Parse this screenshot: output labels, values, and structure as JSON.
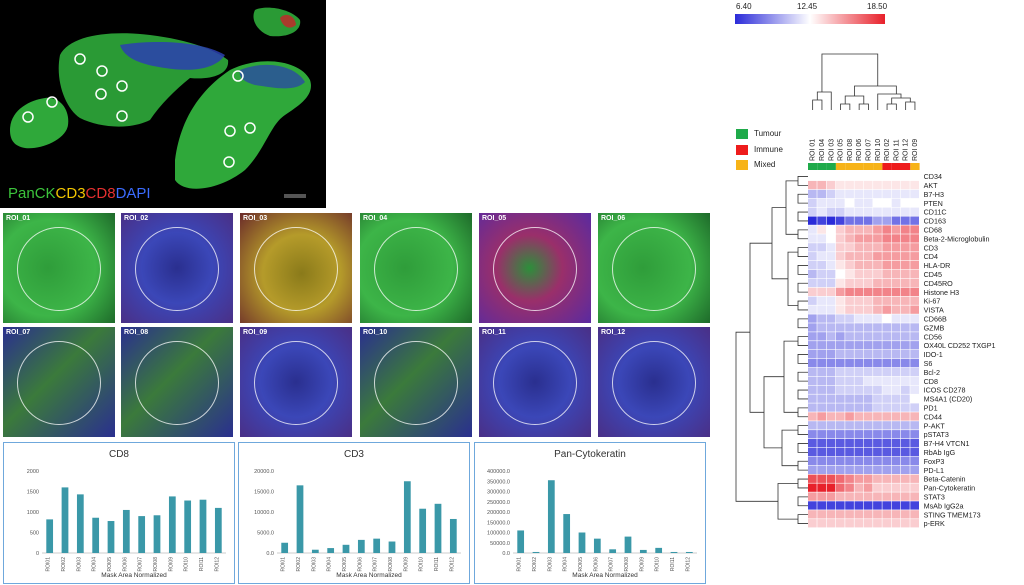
{
  "overview": {
    "legend": [
      {
        "text": "PanCK",
        "color": "#3cc43c"
      },
      {
        "text": "CD3",
        "color": "#f2c500"
      },
      {
        "text": "CD8",
        "color": "#e53030"
      },
      {
        "text": "DAPI",
        "color": "#3b6cff"
      }
    ],
    "roi_markers": [
      "ROI_01",
      "ROI_02",
      "ROI_03",
      "ROI_04",
      "ROI_05",
      "ROI_06",
      "ROI_07",
      "ROI_08",
      "ROI_09",
      "ROI_10",
      "ROI_11",
      "ROI_12"
    ]
  },
  "thumbnails": [
    {
      "label": "ROI_01",
      "palette": "green"
    },
    {
      "label": "ROI_02",
      "palette": "blue"
    },
    {
      "label": "ROI_03",
      "palette": "yellow"
    },
    {
      "label": "ROI_04",
      "palette": "green"
    },
    {
      "label": "ROI_05",
      "palette": "red"
    },
    {
      "label": "ROI_06",
      "palette": "green"
    },
    {
      "label": "ROI_07",
      "palette": "mix"
    },
    {
      "label": "ROI_08",
      "palette": "mix"
    },
    {
      "label": "ROI_09",
      "palette": "blue"
    },
    {
      "label": "ROI_10",
      "palette": "mix"
    },
    {
      "label": "ROI_11",
      "palette": "blue"
    },
    {
      "label": "ROI_12",
      "palette": "blue"
    }
  ],
  "chart_data": [
    {
      "type": "bar",
      "title": "CD8",
      "xlabel": "Mask Area Normalized",
      "categories": [
        "ROI01",
        "ROI02",
        "ROI03",
        "ROI04",
        "ROI05",
        "ROI06",
        "ROI07",
        "ROI08",
        "ROI09",
        "ROI10",
        "ROI11",
        "ROI12"
      ],
      "values": [
        820,
        1600,
        1430,
        860,
        780,
        1050,
        900,
        920,
        1380,
        1280,
        1300,
        1100
      ],
      "ylim": [
        0,
        2000
      ],
      "yticks": [
        "2000",
        "1500",
        "1000",
        "500",
        "0"
      ],
      "bar_color": "#3a98a8"
    },
    {
      "type": "bar",
      "title": "CD3",
      "xlabel": "Mask Area Normalized",
      "categories": [
        "ROI01",
        "ROI02",
        "ROI03",
        "ROI04",
        "ROI05",
        "ROI06",
        "ROI07",
        "ROI08",
        "ROI09",
        "ROI10",
        "ROI11",
        "ROI12"
      ],
      "values": [
        2500,
        16500,
        800,
        1200,
        2000,
        3200,
        3500,
        2800,
        17500,
        10800,
        12000,
        8300
      ],
      "ylim": [
        0,
        20000
      ],
      "yticks": [
        "20000.0",
        "15000.0",
        "10000.0",
        "5000.0",
        "0.0"
      ],
      "bar_color": "#3a98a8"
    },
    {
      "type": "bar",
      "title": "Pan-Cytokeratin",
      "xlabel": "Mask Area Normalized",
      "categories": [
        "ROI01",
        "ROI02",
        "ROI03",
        "ROI04",
        "ROI05",
        "ROI06",
        "ROI07",
        "ROI08",
        "ROI09",
        "ROI10",
        "ROI11",
        "ROI12"
      ],
      "values": [
        110000,
        5000,
        355000,
        190000,
        100000,
        70000,
        18000,
        80000,
        15000,
        25000,
        5000,
        5000
      ],
      "ylim": [
        0,
        400000
      ],
      "yticks": [
        "400000.0",
        "350000.0",
        "300000.0",
        "250000.0",
        "200000.0",
        "150000.0",
        "100000.0",
        "50000.0",
        "0.0"
      ],
      "bar_color": "#3a98a8"
    },
    {
      "type": "heatmap",
      "colorbar": {
        "min": "6.40",
        "mid": "12.45",
        "max": "18.50",
        "low_color": "#2b2bd9",
        "mid_color": "#ffffff",
        "high_color": "#e8202a"
      },
      "columns": [
        "ROI 01",
        "ROI 04",
        "ROI 03",
        "ROI 05",
        "ROI 08",
        "ROI 06",
        "ROI 07",
        "ROI 10",
        "ROI 02",
        "ROI 11",
        "ROI 12",
        "ROI 09"
      ],
      "column_groups": [
        "Tumour",
        "Tumour",
        "Tumour",
        "Mixed",
        "Mixed",
        "Mixed",
        "Mixed",
        "Mixed",
        "Immune",
        "Immune",
        "Immune",
        "Mixed"
      ],
      "legend": [
        {
          "name": "Tumour",
          "color": "#1faa4a"
        },
        {
          "name": "Immune",
          "color": "#ee1c1c"
        },
        {
          "name": "Mixed",
          "color": "#f7b318"
        }
      ],
      "rows": [
        "CD34",
        "AKT",
        "B7-H3",
        "PTEN",
        "CD11C",
        "CD163",
        "CD68",
        "Beta-2-Microglobulin",
        "CD3",
        "CD4",
        "HLA-DR",
        "CD45",
        "CD45RO",
        "Histone H3",
        "Ki-67",
        "VISTA",
        "CD66B",
        "GZMB",
        "CD56",
        "OX40L CD252 TXGP1",
        "IDO-1",
        "S6",
        "Bcl-2",
        "CD8",
        "ICOS CD278",
        "MS4A1 (CD20)",
        "PD1",
        "CD44",
        "P-AKT",
        "pSTAT3",
        "B7-H4 VTCN1",
        "RbAb IgG",
        "FoxP3",
        "PD-L1",
        "Beta-Catenin",
        "Pan-Cytokeratin",
        "STAT3",
        "MsAb IgG2a",
        "STING TMEM173",
        "p-ERK"
      ],
      "values": [
        [
          0,
          0,
          0,
          0,
          0,
          0,
          0,
          0,
          0,
          0,
          0,
          0
        ],
        [
          3,
          3,
          2,
          1,
          1,
          1,
          1,
          1,
          1,
          1,
          1,
          1
        ],
        [
          -3,
          -3,
          -2,
          -1,
          -1,
          -1,
          -1,
          -1,
          -1,
          -1,
          -1,
          -1
        ],
        [
          -2,
          -1,
          -1,
          -1,
          0,
          -1,
          -1,
          0,
          0,
          -1,
          0,
          0
        ],
        [
          -2,
          -1,
          -2,
          -2,
          -1,
          -1,
          -1,
          -1,
          -1,
          -1,
          -1,
          -1
        ],
        [
          -9,
          -8,
          -9,
          -8,
          -6,
          -6,
          -6,
          -4,
          -4,
          -6,
          -6,
          -6
        ],
        [
          -1,
          1,
          0,
          2,
          3,
          3,
          3,
          4,
          5,
          4,
          5,
          5
        ],
        [
          -1,
          -1,
          0,
          2,
          3,
          4,
          4,
          4,
          5,
          5,
          5,
          5
        ],
        [
          -2,
          -2,
          -1,
          2,
          2,
          3,
          3,
          3,
          4,
          4,
          4,
          4
        ],
        [
          -2,
          -1,
          -1,
          2,
          3,
          3,
          3,
          4,
          4,
          4,
          4,
          4
        ],
        [
          -2,
          -2,
          -1,
          1,
          2,
          3,
          3,
          3,
          4,
          4,
          4,
          4
        ],
        [
          -3,
          -2,
          -2,
          0,
          1,
          2,
          2,
          2,
          3,
          3,
          3,
          3
        ],
        [
          -2,
          -2,
          -2,
          1,
          2,
          2,
          2,
          3,
          3,
          3,
          3,
          3
        ],
        [
          2,
          2,
          2,
          4,
          5,
          5,
          5,
          5,
          5,
          5,
          5,
          5
        ],
        [
          -2,
          -1,
          -1,
          1,
          2,
          2,
          2,
          3,
          3,
          3,
          3,
          3
        ],
        [
          -1,
          -1,
          -1,
          1,
          2,
          2,
          2,
          3,
          4,
          3,
          3,
          4
        ],
        [
          -4,
          -3,
          -3,
          -2,
          -2,
          -1,
          -1,
          -1,
          0,
          -1,
          -1,
          -1
        ],
        [
          -4,
          -3,
          -3,
          -3,
          -3,
          -3,
          -3,
          -3,
          -3,
          -3,
          -3,
          -3
        ],
        [
          -4,
          -4,
          -3,
          -4,
          -3,
          -3,
          -3,
          -3,
          -3,
          -3,
          -3,
          -3
        ],
        [
          -4,
          -4,
          -4,
          -4,
          -4,
          -4,
          -4,
          -4,
          -4,
          -4,
          -4,
          -4
        ],
        [
          -4,
          -4,
          -4,
          -3,
          -3,
          -3,
          -3,
          -3,
          -3,
          -3,
          -3,
          -3
        ],
        [
          -5,
          -5,
          -5,
          -5,
          -5,
          -5,
          -5,
          -5,
          -5,
          -5,
          -5,
          -5
        ],
        [
          -3,
          -3,
          -3,
          -2,
          -2,
          -2,
          -2,
          -2,
          -2,
          -2,
          -2,
          -2
        ],
        [
          -3,
          -3,
          -3,
          -2,
          -2,
          -2,
          -1,
          -1,
          -1,
          -1,
          -1,
          -1
        ],
        [
          -3,
          -3,
          -3,
          -2,
          -2,
          -2,
          -2,
          -2,
          -1,
          -1,
          -2,
          -1
        ],
        [
          -3,
          -3,
          -3,
          -3,
          -3,
          -3,
          -3,
          -2,
          -2,
          -2,
          -2,
          0
        ],
        [
          -3,
          -3,
          -3,
          -3,
          -3,
          -3,
          -3,
          -2,
          -2,
          -2,
          -2,
          -2
        ],
        [
          3,
          4,
          3,
          3,
          4,
          3,
          3,
          3,
          3,
          3,
          3,
          3
        ],
        [
          -3,
          -3,
          -3,
          -3,
          -3,
          -3,
          -3,
          -3,
          -3,
          -3,
          -3,
          -3
        ],
        [
          -5,
          -5,
          -5,
          -5,
          -5,
          -5,
          -5,
          -5,
          -5,
          -5,
          -5,
          -5
        ],
        [
          -7,
          -7,
          -7,
          -7,
          -7,
          -7,
          -7,
          -7,
          -7,
          -7,
          -7,
          -7
        ],
        [
          -7,
          -7,
          -7,
          -7,
          -7,
          -7,
          -7,
          -7,
          -7,
          -7,
          -7,
          -7
        ],
        [
          -5,
          -5,
          -5,
          -5,
          -5,
          -5,
          -5,
          -5,
          -5,
          -5,
          -5,
          -5
        ],
        [
          -4,
          -4,
          -4,
          -4,
          -4,
          -4,
          -4,
          -4,
          -4,
          -4,
          -4,
          -4
        ],
        [
          7,
          7,
          7,
          6,
          5,
          4,
          4,
          3,
          3,
          3,
          3,
          3
        ],
        [
          9,
          9,
          9,
          6,
          5,
          3,
          4,
          2,
          2,
          2,
          2,
          2
        ],
        [
          4,
          4,
          4,
          3,
          3,
          3,
          3,
          3,
          3,
          3,
          3,
          3
        ],
        [
          -8,
          -8,
          -8,
          -8,
          -8,
          -8,
          -8,
          -8,
          -8,
          -8,
          -8,
          -8
        ],
        [
          3,
          3,
          3,
          3,
          3,
          3,
          3,
          3,
          3,
          3,
          3,
          3
        ],
        [
          2,
          2,
          2,
          2,
          2,
          2,
          2,
          2,
          2,
          2,
          2,
          2
        ]
      ]
    }
  ]
}
